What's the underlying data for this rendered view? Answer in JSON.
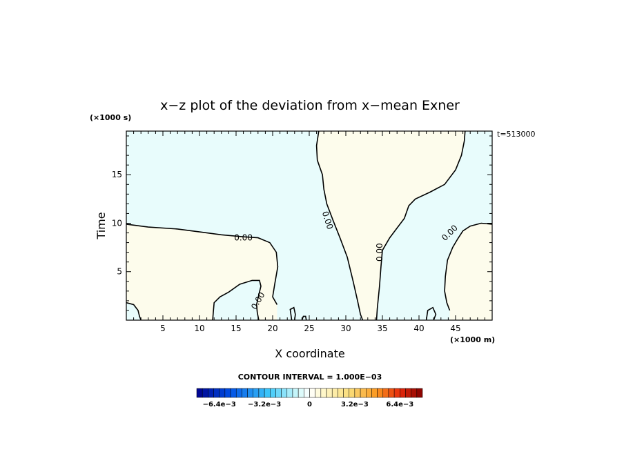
{
  "chart_data": {
    "type": "contour",
    "title": "x−z plot of the deviation from x−mean Exner",
    "xlabel": "X coordinate",
    "ylabel": "Time",
    "x_unit": "(×1000 m)",
    "y_unit": "(×1000 s)",
    "time_label": "t=513000",
    "xlim": [
      0,
      50
    ],
    "ylim": [
      0,
      19.5
    ],
    "x_ticks": [
      5,
      10,
      15,
      20,
      25,
      30,
      35,
      40,
      45
    ],
    "x_tick_labels": [
      "5",
      "10",
      "15",
      "20",
      "25",
      "30",
      "35",
      "40",
      "45"
    ],
    "y_ticks": [
      5,
      10,
      15
    ],
    "y_tick_labels": [
      "5",
      "10",
      "15"
    ],
    "contour_label": "0.00",
    "contour_interval_text": "CONTOUR INTERVAL = 1.000E−03",
    "colorbar": {
      "min": -0.008,
      "max": 0.008,
      "tick_labels": [
        "−6.4e−3",
        "−3.2e−3",
        "0",
        "3.2e−3",
        "6.4e−3"
      ],
      "tick_values": [
        -0.0064,
        -0.0032,
        0,
        0.0032,
        0.0064
      ]
    },
    "regions": {
      "negative_color": "#e8fcfc",
      "positive_color": "#fdfcec"
    },
    "contours": [
      {
        "name": "zero-contour-left",
        "points": [
          [
            0,
            9.9
          ],
          [
            3,
            9.6
          ],
          [
            7,
            9.4
          ],
          [
            10,
            9.1
          ],
          [
            13,
            8.8
          ],
          [
            16,
            8.6
          ],
          [
            18,
            8.5
          ],
          [
            19.6,
            8.0
          ],
          [
            20.5,
            7.0
          ],
          [
            20.7,
            5.5
          ],
          [
            20.3,
            3.8
          ],
          [
            20.0,
            2.4
          ],
          [
            20.6,
            1.6
          ]
        ]
      },
      {
        "name": "zero-contour-center",
        "points": [
          [
            26.3,
            19.5
          ],
          [
            26.0,
            18.0
          ],
          [
            26.1,
            16.5
          ],
          [
            26.8,
            15.0
          ],
          [
            27.0,
            13.5
          ],
          [
            27.4,
            12.0
          ],
          [
            28.3,
            10.2
          ],
          [
            29.2,
            8.5
          ],
          [
            30.2,
            6.5
          ],
          [
            31.0,
            4.0
          ],
          [
            31.6,
            2.0
          ],
          [
            32.0,
            0.6
          ],
          [
            32.3,
            0
          ]
        ]
      },
      {
        "name": "zero-contour-right-arch",
        "points": [
          [
            34.2,
            0
          ],
          [
            34.3,
            1.2
          ],
          [
            34.6,
            3.5
          ],
          [
            34.8,
            5.5
          ],
          [
            35.0,
            7.2
          ],
          [
            36.0,
            8.5
          ],
          [
            37.0,
            9.5
          ],
          [
            38.0,
            10.5
          ],
          [
            38.6,
            11.8
          ],
          [
            39.5,
            12.5
          ],
          [
            41.5,
            13.2
          ],
          [
            43.5,
            14.0
          ],
          [
            45.0,
            15.5
          ],
          [
            45.8,
            17.0
          ],
          [
            46.2,
            18.5
          ],
          [
            46.3,
            19.5
          ]
        ]
      },
      {
        "name": "zero-contour-right-lower",
        "points": [
          [
            50,
            9.9
          ],
          [
            48.5,
            10.0
          ],
          [
            47.0,
            9.7
          ],
          [
            46.0,
            9.2
          ],
          [
            45.3,
            8.4
          ],
          [
            44.6,
            7.5
          ],
          [
            43.9,
            6.2
          ],
          [
            43.6,
            4.5
          ],
          [
            43.5,
            3.0
          ],
          [
            43.8,
            1.8
          ],
          [
            44.2,
            1.0
          ]
        ]
      },
      {
        "name": "zero-contour-bottom-lobe",
        "points": [
          [
            11.8,
            0
          ],
          [
            11.9,
            0.9
          ],
          [
            12.0,
            1.8
          ],
          [
            12.8,
            2.4
          ],
          [
            14.0,
            2.9
          ],
          [
            15.5,
            3.7
          ],
          [
            17.2,
            4.1
          ],
          [
            18.2,
            4.1
          ],
          [
            18.4,
            3.5
          ],
          [
            18.1,
            2.6
          ],
          [
            17.8,
            1.6
          ],
          [
            17.9,
            0.8
          ],
          [
            18.1,
            0
          ]
        ]
      },
      {
        "name": "zero-contour-bottom-left",
        "points": [
          [
            0,
            1.8
          ],
          [
            1.0,
            1.6
          ],
          [
            1.6,
            1.0
          ],
          [
            1.8,
            0.4
          ],
          [
            2.0,
            0
          ]
        ]
      },
      {
        "name": "zero-contour-small-1",
        "points": [
          [
            22.6,
            0
          ],
          [
            22.4,
            1.1
          ],
          [
            22.9,
            1.3
          ],
          [
            23.1,
            0.6
          ],
          [
            23.0,
            0
          ]
        ]
      },
      {
        "name": "zero-contour-small-2",
        "points": [
          [
            24.0,
            0
          ],
          [
            24.2,
            0.4
          ],
          [
            24.5,
            0.4
          ],
          [
            24.6,
            0
          ]
        ]
      },
      {
        "name": "zero-contour-small-3",
        "points": [
          [
            41.0,
            0
          ],
          [
            41.2,
            1.0
          ],
          [
            41.9,
            1.3
          ],
          [
            42.3,
            0.6
          ],
          [
            42.0,
            0
          ]
        ]
      }
    ],
    "contour_labels": [
      {
        "text": "0.00",
        "x": 16.0,
        "y": 8.5,
        "angle": 0
      },
      {
        "text": "0.00",
        "x": 27.5,
        "y": 10.3,
        "angle": 72
      },
      {
        "text": "0.00",
        "x": 34.6,
        "y": 7.0,
        "angle": -90
      },
      {
        "text": "0.00",
        "x": 44.2,
        "y": 9.0,
        "angle": -45
      },
      {
        "text": "0.00",
        "x": 18.0,
        "y": 2.0,
        "angle": -60
      }
    ],
    "grid": false,
    "legend": "bottom-center"
  }
}
